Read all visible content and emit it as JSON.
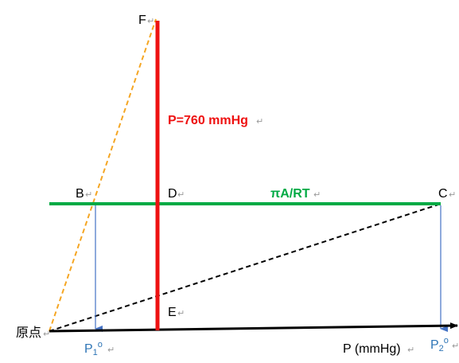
{
  "colors": {
    "vertical_line": "#ee1111",
    "horizontal_line": "#00aa44",
    "dashed_orange": "#f5a623",
    "dashed_black": "#000000",
    "arrow_blue": "#4472c4",
    "label_red": "#ee1111",
    "label_green": "#00aa44",
    "label_blue": "#2e75b6",
    "label_black": "#000000"
  },
  "labels": {
    "F": "F",
    "B": "B",
    "D": "D",
    "C": "C",
    "E": "E",
    "origin": "原点",
    "pressure_line": "P=760 mmHg",
    "green_line": "πA/RT",
    "axis": "P (mmHg)",
    "p1": "P",
    "p1_sub": "1",
    "p1_sup": "o",
    "p2": "P",
    "p2_sub": "2",
    "p2_sup": "o"
  }
}
